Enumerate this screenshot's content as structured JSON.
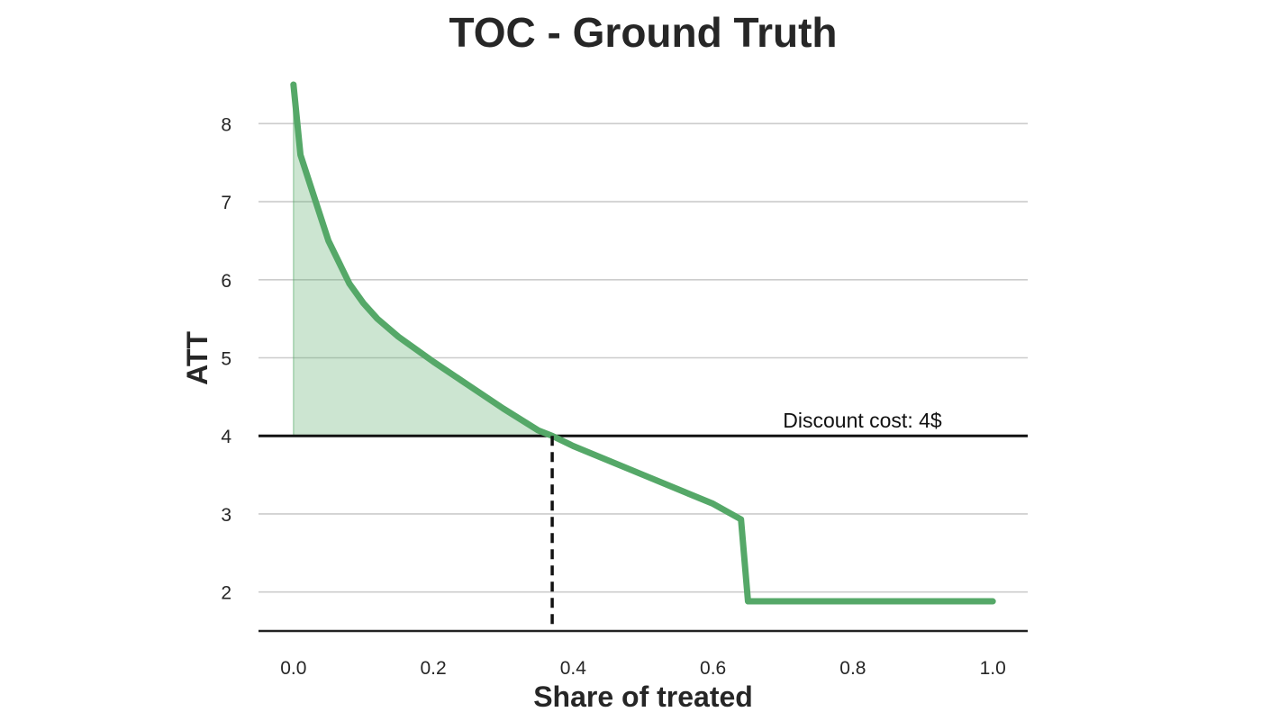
{
  "chart_data": {
    "type": "line",
    "title": "TOC - Ground Truth",
    "xlabel": "Share of treated",
    "ylabel": "ATT",
    "xlim": [
      -0.05,
      1.05
    ],
    "ylim": [
      1.5,
      8.5
    ],
    "xticks": [
      "0.0",
      "0.2",
      "0.4",
      "0.6",
      "0.8",
      "1.0"
    ],
    "xtick_values": [
      0.0,
      0.2,
      0.4,
      0.6,
      0.8,
      1.0
    ],
    "yticks": [
      "2",
      "3",
      "4",
      "5",
      "6",
      "7",
      "8"
    ],
    "ytick_values": [
      2,
      3,
      4,
      5,
      6,
      7,
      8
    ],
    "grid": "horizontal",
    "series": [
      {
        "color": "#55a868",
        "x": [
          0.0,
          0.01,
          0.03,
          0.05,
          0.08,
          0.1,
          0.12,
          0.15,
          0.2,
          0.25,
          0.3,
          0.35,
          0.37,
          0.4,
          0.5,
          0.6,
          0.64,
          0.65,
          1.0
        ],
        "y": [
          8.5,
          7.6,
          7.05,
          6.5,
          5.95,
          5.7,
          5.5,
          5.27,
          4.95,
          4.65,
          4.35,
          4.07,
          4.0,
          3.87,
          3.5,
          3.13,
          2.93,
          1.88,
          1.88
        ]
      }
    ],
    "shaded_region": {
      "x_from": 0.0,
      "x_to": 0.37,
      "y_baseline": 4,
      "color": "#55a868"
    },
    "hline": {
      "y": 4,
      "label": "Discount cost: 4$",
      "label_x": 0.7
    },
    "vline": {
      "x": 0.37,
      "style": "dashed"
    }
  }
}
